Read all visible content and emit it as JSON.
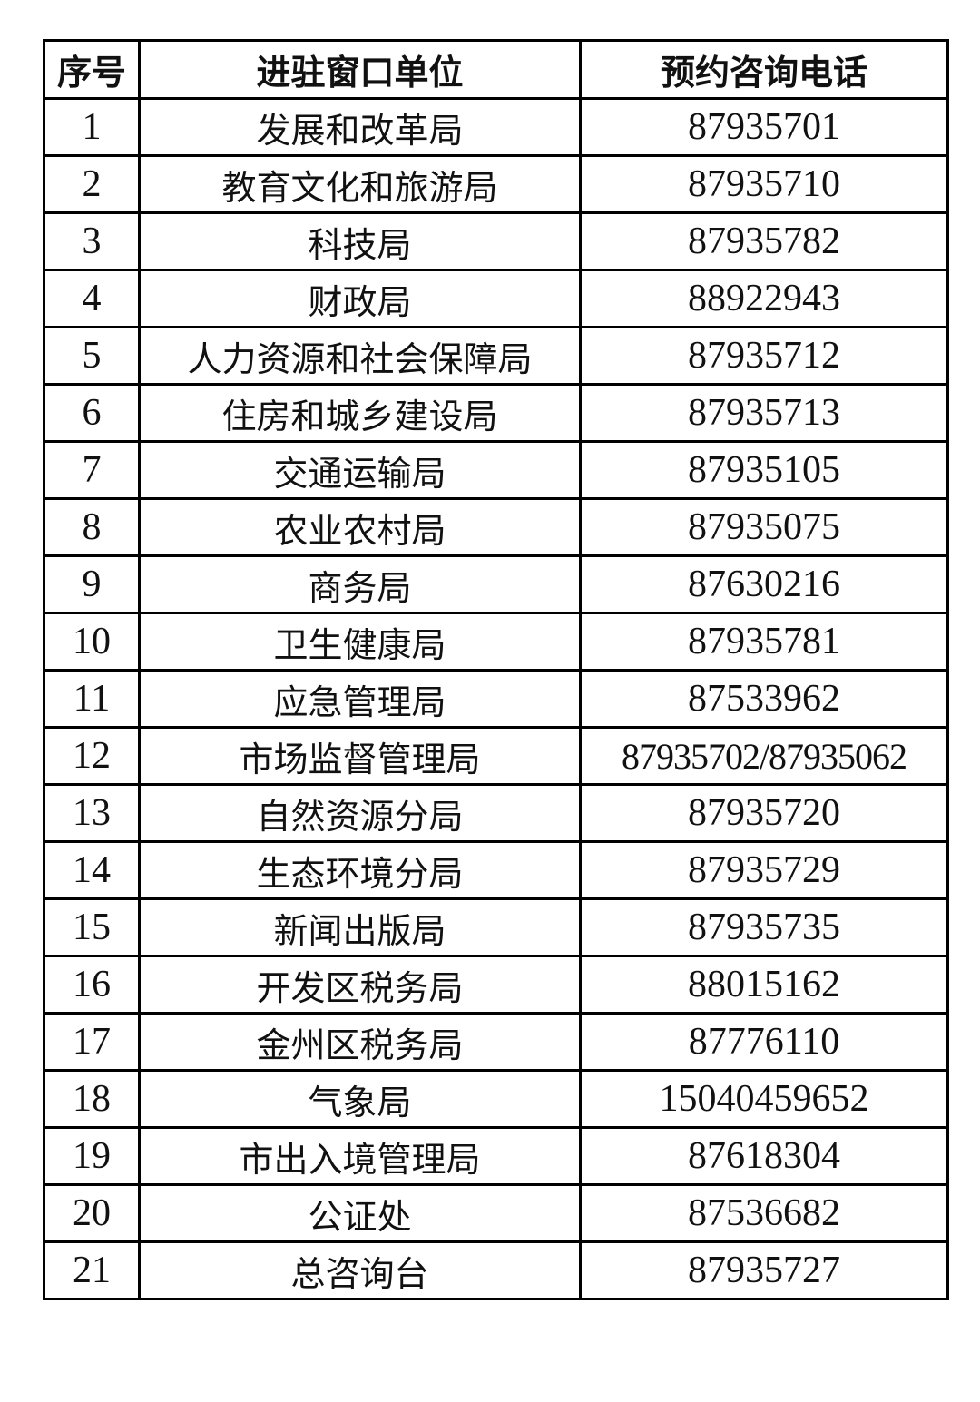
{
  "table": {
    "headers": [
      "序号",
      "进驻窗口单位",
      "预约咨询电话"
    ],
    "rows": [
      {
        "no": "1",
        "unit": "发展和改革局",
        "phone": "87935701"
      },
      {
        "no": "2",
        "unit": "教育文化和旅游局",
        "phone": "87935710"
      },
      {
        "no": "3",
        "unit": "科技局",
        "phone": "87935782"
      },
      {
        "no": "4",
        "unit": "财政局",
        "phone": "88922943"
      },
      {
        "no": "5",
        "unit": "人力资源和社会保障局",
        "phone": "87935712"
      },
      {
        "no": "6",
        "unit": "住房和城乡建设局",
        "phone": "87935713"
      },
      {
        "no": "7",
        "unit": "交通运输局",
        "phone": "87935105"
      },
      {
        "no": "8",
        "unit": "农业农村局",
        "phone": "87935075"
      },
      {
        "no": "9",
        "unit": "商务局",
        "phone": "87630216"
      },
      {
        "no": "10",
        "unit": "卫生健康局",
        "phone": "87935781"
      },
      {
        "no": "11",
        "unit": "应急管理局",
        "phone": "87533962"
      },
      {
        "no": "12",
        "unit": "市场监督管理局",
        "phone": "87935702/87935062"
      },
      {
        "no": "13",
        "unit": "自然资源分局",
        "phone": "87935720"
      },
      {
        "no": "14",
        "unit": "生态环境分局",
        "phone": "87935729"
      },
      {
        "no": "15",
        "unit": "新闻出版局",
        "phone": "87935735"
      },
      {
        "no": "16",
        "unit": "开发区税务局",
        "phone": "88015162"
      },
      {
        "no": "17",
        "unit": "金州区税务局",
        "phone": "87776110"
      },
      {
        "no": "18",
        "unit": "气象局",
        "phone": "15040459652"
      },
      {
        "no": "19",
        "unit": "市出入境管理局",
        "phone": "87618304"
      },
      {
        "no": "20",
        "unit": "公证处",
        "phone": "87536682"
      },
      {
        "no": "21",
        "unit": "总咨询台",
        "phone": "87935727"
      }
    ]
  }
}
